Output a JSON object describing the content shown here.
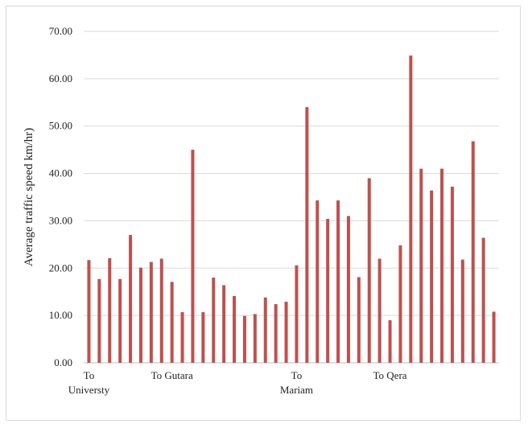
{
  "chart_data": {
    "type": "bar",
    "ylabel": "Average traffic speed km/hr)",
    "ylim": [
      0,
      70
    ],
    "yticks": [
      "0.00",
      "10.00",
      "20.00",
      "30.00",
      "40.00",
      "50.00",
      "60.00",
      "70.00"
    ],
    "grid": true,
    "bar_color": "#c0504d",
    "category_labels": [
      {
        "index": 0,
        "lines": [
          "To",
          "Universty"
        ]
      },
      {
        "index": 8,
        "lines": [
          "To Gutara"
        ]
      },
      {
        "index": 20,
        "lines": [
          "To",
          "Mariam"
        ]
      },
      {
        "index": 29,
        "lines": [
          "To Qera"
        ]
      }
    ],
    "values": [
      21.7,
      17.7,
      22.1,
      17.7,
      27.0,
      20.1,
      21.3,
      22.0,
      17.1,
      10.7,
      45.0,
      10.7,
      18.0,
      16.4,
      14.1,
      9.9,
      10.3,
      13.8,
      12.4,
      12.9,
      20.6,
      54.0,
      34.3,
      30.4,
      34.3,
      31.0,
      18.1,
      39.0,
      22.0,
      9.0,
      24.8,
      64.9,
      41.0,
      36.4,
      41.0,
      37.2,
      21.8,
      46.8,
      26.4,
      10.8
    ]
  }
}
